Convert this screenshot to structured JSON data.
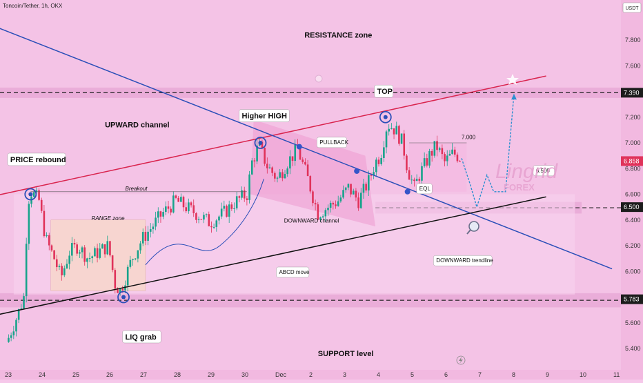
{
  "header": {
    "symbol": "Toncoin/Tether, 1h, OKX",
    "currency": "USDT"
  },
  "colors": {
    "background": "#f6c8ea",
    "bull_candle": "#17a38b",
    "bear_candle": "#e0325a",
    "upward_channel": "#d9244e",
    "downward_trendline": "#2b4fb8",
    "support_line": "#111111",
    "zone_band": "#e7a6d4"
  },
  "chart_data": {
    "type": "line",
    "y_range": [
      5.3,
      8.05
    ],
    "x_dates": [
      "23",
      "24",
      "25",
      "26",
      "27",
      "28",
      "29",
      "30",
      "Dec",
      "2",
      "3",
      "4",
      "5",
      "6",
      "7",
      "8",
      "9",
      "10",
      "11"
    ],
    "y_ticks": [
      "7.800",
      "7.600",
      "7.390",
      "7.200",
      "7.000",
      "6.858",
      "6.800",
      "6.600",
      "6.500",
      "6.400",
      "6.200",
      "6.000",
      "5.783",
      "5.600",
      "5.400"
    ],
    "price_tags": [
      {
        "text": "7.390",
        "value": 7.39,
        "style": "dark"
      },
      {
        "text": "6.858",
        "value": 6.858,
        "style": "red"
      },
      {
        "text": "6.500",
        "value": 6.5,
        "style": "dark"
      },
      {
        "text": "5.783",
        "value": 5.783,
        "style": "dark"
      }
    ],
    "series": [],
    "price_path": [
      [
        0,
        5.45
      ],
      [
        0.15,
        5.55
      ],
      [
        0.3,
        5.65
      ],
      [
        0.5,
        5.8
      ],
      [
        0.62,
        6.55
      ],
      [
        0.72,
        6.62
      ],
      [
        0.95,
        6.55
      ],
      [
        1.15,
        6.25
      ],
      [
        1.4,
        6.1
      ],
      [
        1.6,
        5.95
      ],
      [
        1.85,
        6.15
      ],
      [
        2.1,
        6.2
      ],
      [
        2.4,
        6.1
      ],
      [
        2.7,
        6.15
      ],
      [
        3.0,
        6.2
      ],
      [
        3.2,
        5.9
      ],
      [
        3.35,
        5.85
      ],
      [
        3.5,
        5.95
      ],
      [
        3.7,
        6.1
      ],
      [
        4.0,
        6.25
      ],
      [
        4.3,
        6.35
      ],
      [
        4.6,
        6.45
      ],
      [
        5.0,
        6.55
      ],
      [
        5.3,
        6.5
      ],
      [
        5.6,
        6.45
      ],
      [
        6.0,
        6.38
      ],
      [
        6.4,
        6.45
      ],
      [
        6.8,
        6.55
      ],
      [
        7.1,
        6.6
      ],
      [
        7.25,
        6.85
      ],
      [
        7.45,
        6.98
      ],
      [
        7.7,
        6.82
      ],
      [
        8.0,
        6.72
      ],
      [
        8.3,
        6.85
      ],
      [
        8.6,
        6.95
      ],
      [
        8.9,
        6.72
      ],
      [
        9.2,
        6.45
      ],
      [
        9.5,
        6.5
      ],
      [
        9.8,
        6.55
      ],
      [
        10.1,
        6.65
      ],
      [
        10.4,
        6.55
      ],
      [
        10.7,
        6.7
      ],
      [
        10.9,
        6.85
      ],
      [
        11.05,
        6.9
      ],
      [
        11.25,
        7.15
      ],
      [
        11.5,
        7.1
      ],
      [
        11.7,
        7.0
      ],
      [
        11.85,
        6.8
      ],
      [
        12.05,
        6.65
      ],
      [
        12.2,
        6.75
      ],
      [
        12.5,
        6.9
      ],
      [
        12.7,
        6.98
      ],
      [
        12.95,
        6.85
      ],
      [
        13.2,
        6.92
      ],
      [
        13.45,
        6.88
      ]
    ],
    "projection": [
      [
        13.45,
        6.88
      ],
      [
        13.7,
        6.68
      ],
      [
        13.9,
        6.5
      ],
      [
        14.2,
        6.75
      ],
      [
        14.4,
        6.62
      ],
      [
        14.75,
        6.62
      ],
      [
        15.0,
        7.38
      ]
    ],
    "lines": [
      {
        "name": "UPWARD channel top",
        "from": [
          -0.5,
          6.58
        ],
        "to": [
          15.95,
          7.52
        ],
        "color": "#d9244e"
      },
      {
        "name": "DOWNWARD trendline",
        "from": [
          -0.5,
          7.92
        ],
        "to": [
          17.9,
          6.02
        ],
        "color": "#2b4fb8"
      },
      {
        "name": "Support trendline",
        "from": [
          -0.5,
          5.65
        ],
        "to": [
          15.95,
          6.58
        ],
        "color": "#111111"
      }
    ],
    "zones": [
      {
        "label": "RESISTANCE",
        "y_from": 7.35,
        "y_to": 7.43
      },
      {
        "label": "SUPPORT",
        "y_from": 5.72,
        "y_to": 5.83
      },
      {
        "label": "EQL",
        "y_from": 6.45,
        "y_to": 6.54
      }
    ],
    "annotations": [
      {
        "text": "RESISTANCE zone",
        "x": 8.8,
        "y": 7.82
      },
      {
        "text": "UPWARD channel",
        "x": 2.9,
        "y": 7.12
      },
      {
        "text": "PRICE rebound",
        "x": 0.1,
        "y": 6.85
      },
      {
        "text": "RANGE zone",
        "x": 2.5,
        "y": 6.4
      },
      {
        "text": "Higher HIGH",
        "x": 6.95,
        "y": 7.19
      },
      {
        "text": "TOP",
        "x": 10.95,
        "y": 7.38
      },
      {
        "text": "PULLBACK",
        "x": 9.25,
        "y": 6.99
      },
      {
        "text": "7.000",
        "x": 13.45,
        "y": 7.03
      },
      {
        "text": "EQL",
        "x": 12.2,
        "y": 6.63
      },
      {
        "text": "Breakout",
        "x": 3.5,
        "y": 6.63
      },
      {
        "text": "DOWNWARD channel",
        "x": 8.2,
        "y": 6.38
      },
      {
        "text": "ABCD move",
        "x": 8.05,
        "y": 5.98
      },
      {
        "text": "DOWNWARD trendline",
        "x": 12.7,
        "y": 6.07
      },
      {
        "text": "LIQ grab",
        "x": 3.5,
        "y": 5.47
      },
      {
        "text": "SUPPORT level",
        "x": 9.2,
        "y": 5.34
      },
      {
        "text": "6.500",
        "x": 15.65,
        "y": 6.77
      }
    ]
  },
  "watermark": {
    "line1": "Lingrid",
    "line2": "FOREX"
  }
}
